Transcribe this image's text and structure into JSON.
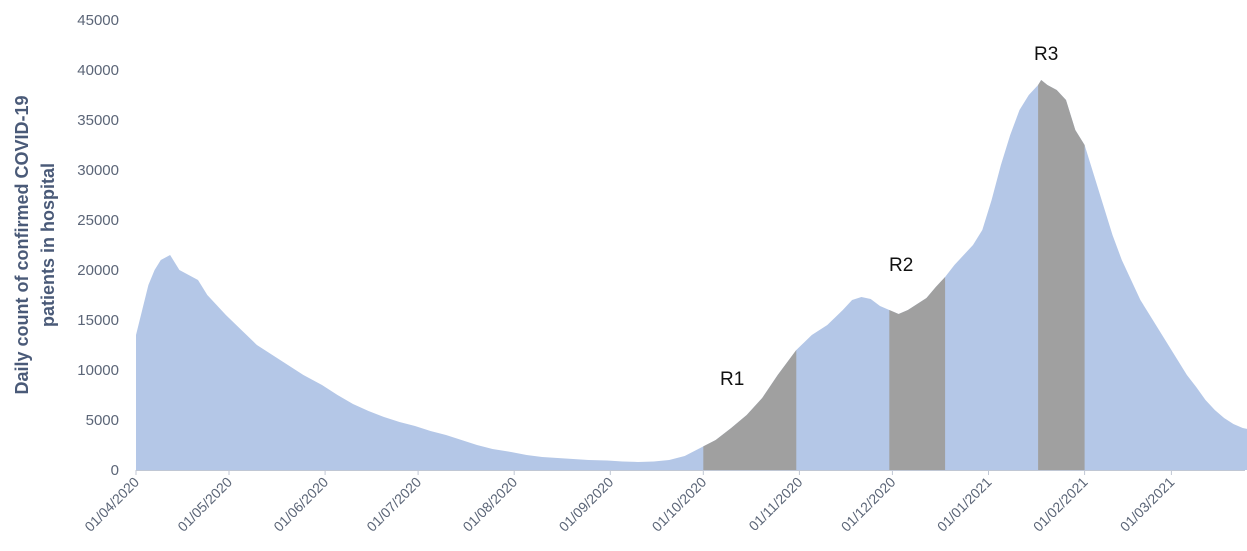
{
  "chart_data": {
    "type": "area",
    "title": "",
    "xlabel": "",
    "ylabel_lines": [
      "Daily count of confirmed COVID-19",
      "patients in hospital"
    ],
    "xlim": [
      "2020-04-01",
      "2021-03-31"
    ],
    "ylim": [
      0,
      45000
    ],
    "yticks": [
      0,
      5000,
      10000,
      15000,
      20000,
      25000,
      30000,
      35000,
      40000,
      45000
    ],
    "xticks": [
      "01/04/2020",
      "01/05/2020",
      "01/06/2020",
      "01/07/2020",
      "01/08/2020",
      "01/09/2020",
      "01/10/2020",
      "01/11/2020",
      "01/12/2020",
      "01/01/2021",
      "01/02/2021",
      "01/03/2021"
    ],
    "grid": false,
    "colors": {
      "area": "#b4c7e7",
      "region": "#a0a0a0",
      "axis": "#c0c7d4",
      "text": "#5b6577",
      "ylabel": "#4a5a78"
    },
    "series": [
      {
        "x": [
          "2020-04-01",
          "2020-04-03",
          "2020-04-05",
          "2020-04-07",
          "2020-04-09",
          "2020-04-12",
          "2020-04-15",
          "2020-04-18",
          "2020-04-21",
          "2020-04-24",
          "2020-04-27",
          "2020-04-30",
          "2020-05-05",
          "2020-05-10",
          "2020-05-15",
          "2020-05-20",
          "2020-05-25",
          "2020-05-31",
          "2020-06-05",
          "2020-06-10",
          "2020-06-15",
          "2020-06-20",
          "2020-06-25",
          "2020-06-30",
          "2020-07-05",
          "2020-07-10",
          "2020-07-15",
          "2020-07-20",
          "2020-07-25",
          "2020-07-31",
          "2020-08-05",
          "2020-08-10",
          "2020-08-15",
          "2020-08-20",
          "2020-08-25",
          "2020-08-31",
          "2020-09-05",
          "2020-09-10",
          "2020-09-15",
          "2020-09-20",
          "2020-09-25",
          "2020-09-30",
          "2020-10-05",
          "2020-10-10",
          "2020-10-15",
          "2020-10-20",
          "2020-10-25",
          "2020-10-31",
          "2020-11-05",
          "2020-11-10",
          "2020-11-15",
          "2020-11-18",
          "2020-11-21",
          "2020-11-24",
          "2020-11-27",
          "2020-11-30",
          "2020-12-03",
          "2020-12-06",
          "2020-12-09",
          "2020-12-12",
          "2020-12-15",
          "2020-12-18",
          "2020-12-21",
          "2020-12-24",
          "2020-12-27",
          "2020-12-30",
          "2021-01-02",
          "2021-01-05",
          "2021-01-08",
          "2021-01-11",
          "2021-01-14",
          "2021-01-17",
          "2021-01-18",
          "2021-01-20",
          "2021-01-23",
          "2021-01-26",
          "2021-01-29",
          "2021-02-01",
          "2021-02-04",
          "2021-02-07",
          "2021-02-10",
          "2021-02-13",
          "2021-02-16",
          "2021-02-19",
          "2021-02-22",
          "2021-02-25",
          "2021-02-28",
          "2021-03-03",
          "2021-03-06",
          "2021-03-09",
          "2021-03-12",
          "2021-03-15",
          "2021-03-18",
          "2021-03-21",
          "2021-03-24",
          "2021-03-27",
          "2021-03-31"
        ],
        "y": [
          13500,
          16000,
          18500,
          20000,
          21000,
          21500,
          20000,
          19500,
          19000,
          17500,
          16500,
          15500,
          14000,
          12500,
          11500,
          10500,
          9500,
          8500,
          7500,
          6600,
          5900,
          5300,
          4800,
          4400,
          3900,
          3500,
          3000,
          2500,
          2100,
          1800,
          1500,
          1300,
          1200,
          1100,
          1000,
          950,
          850,
          800,
          850,
          1000,
          1400,
          2200,
          3000,
          4200,
          5500,
          7200,
          9500,
          12000,
          13500,
          14500,
          16000,
          17000,
          17300,
          17100,
          16400,
          16000,
          15600,
          16000,
          16600,
          17200,
          18300,
          19300,
          20500,
          21500,
          22500,
          24000,
          27000,
          30500,
          33500,
          36000,
          37500,
          38500,
          39000,
          38500,
          38000,
          37000,
          34000,
          32500,
          29500,
          26500,
          23500,
          21000,
          19000,
          17000,
          15500,
          14000,
          12500,
          11000,
          9500,
          8300,
          7000,
          6000,
          5200,
          4600,
          4200,
          4000,
          3800
        ]
      }
    ],
    "regions": [
      {
        "label": "R1",
        "start": "2020-10-01",
        "end": "2020-10-31"
      },
      {
        "label": "R2",
        "start": "2020-11-30",
        "end": "2020-12-18"
      },
      {
        "label": "R3",
        "start": "2021-01-17",
        "end": "2021-02-01"
      }
    ]
  }
}
